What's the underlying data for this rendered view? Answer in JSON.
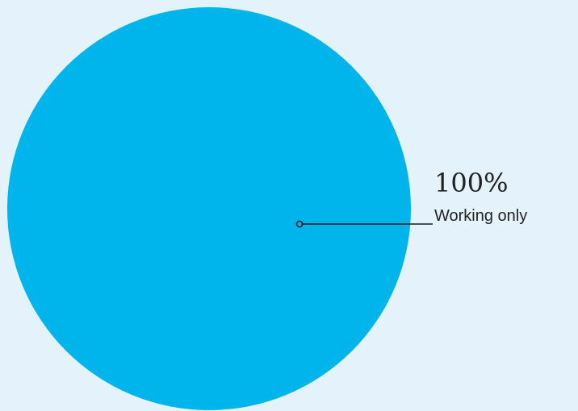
{
  "chart_data": {
    "type": "pie",
    "categories": [
      "Working only"
    ],
    "values": [
      100
    ],
    "data_labels": [
      "100%"
    ],
    "colors": [
      "#00b5ec"
    ],
    "background": "#e4f3fb",
    "legend": "none"
  }
}
